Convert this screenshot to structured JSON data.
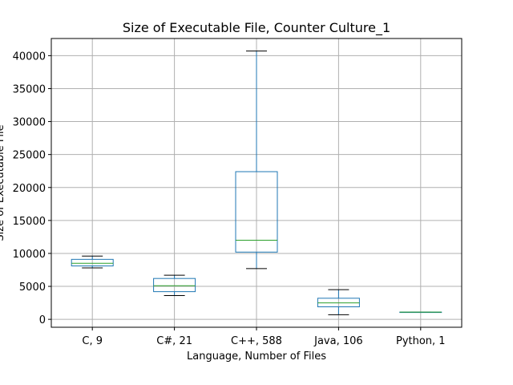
{
  "chart_data": {
    "type": "box",
    "title": "Size of Executable File, Counter Culture_1",
    "xlabel": "Language, Number of Files",
    "ylabel": "Size of Executable File",
    "ylim": [
      -1200,
      42600
    ],
    "yticks": [
      0,
      5000,
      10000,
      15000,
      20000,
      25000,
      30000,
      35000,
      40000
    ],
    "ytick_labels": [
      "0",
      "5000",
      "10000",
      "15000",
      "20000",
      "25000",
      "30000",
      "35000",
      "40000"
    ],
    "grid": true,
    "colors": {
      "box": "#1f77b4",
      "median": "#2ca02c",
      "whisker": "#1f77b4",
      "cap": "#000000",
      "grid": "#b0b0b0"
    },
    "categories": [
      "C, 9",
      "C#, 21",
      "C++, 588",
      "Java, 106",
      "Python, 1"
    ],
    "boxes": [
      {
        "category": "C, 9",
        "whislo": 7800,
        "q1": 8100,
        "med": 8500,
        "q3": 9100,
        "whishi": 9600
      },
      {
        "category": "C#, 21",
        "whislo": 3600,
        "q1": 4200,
        "med": 5100,
        "q3": 6200,
        "whishi": 6700
      },
      {
        "category": "C++, 588",
        "whislo": 7700,
        "q1": 10200,
        "med": 12000,
        "q3": 22400,
        "whishi": 40700
      },
      {
        "category": "Java, 106",
        "whislo": 700,
        "q1": 1900,
        "med": 2500,
        "q3": 3200,
        "whishi": 4500
      },
      {
        "category": "Python, 1",
        "whislo": 1100,
        "q1": 1100,
        "med": 1100,
        "q3": 1100,
        "whishi": 1100
      }
    ]
  }
}
